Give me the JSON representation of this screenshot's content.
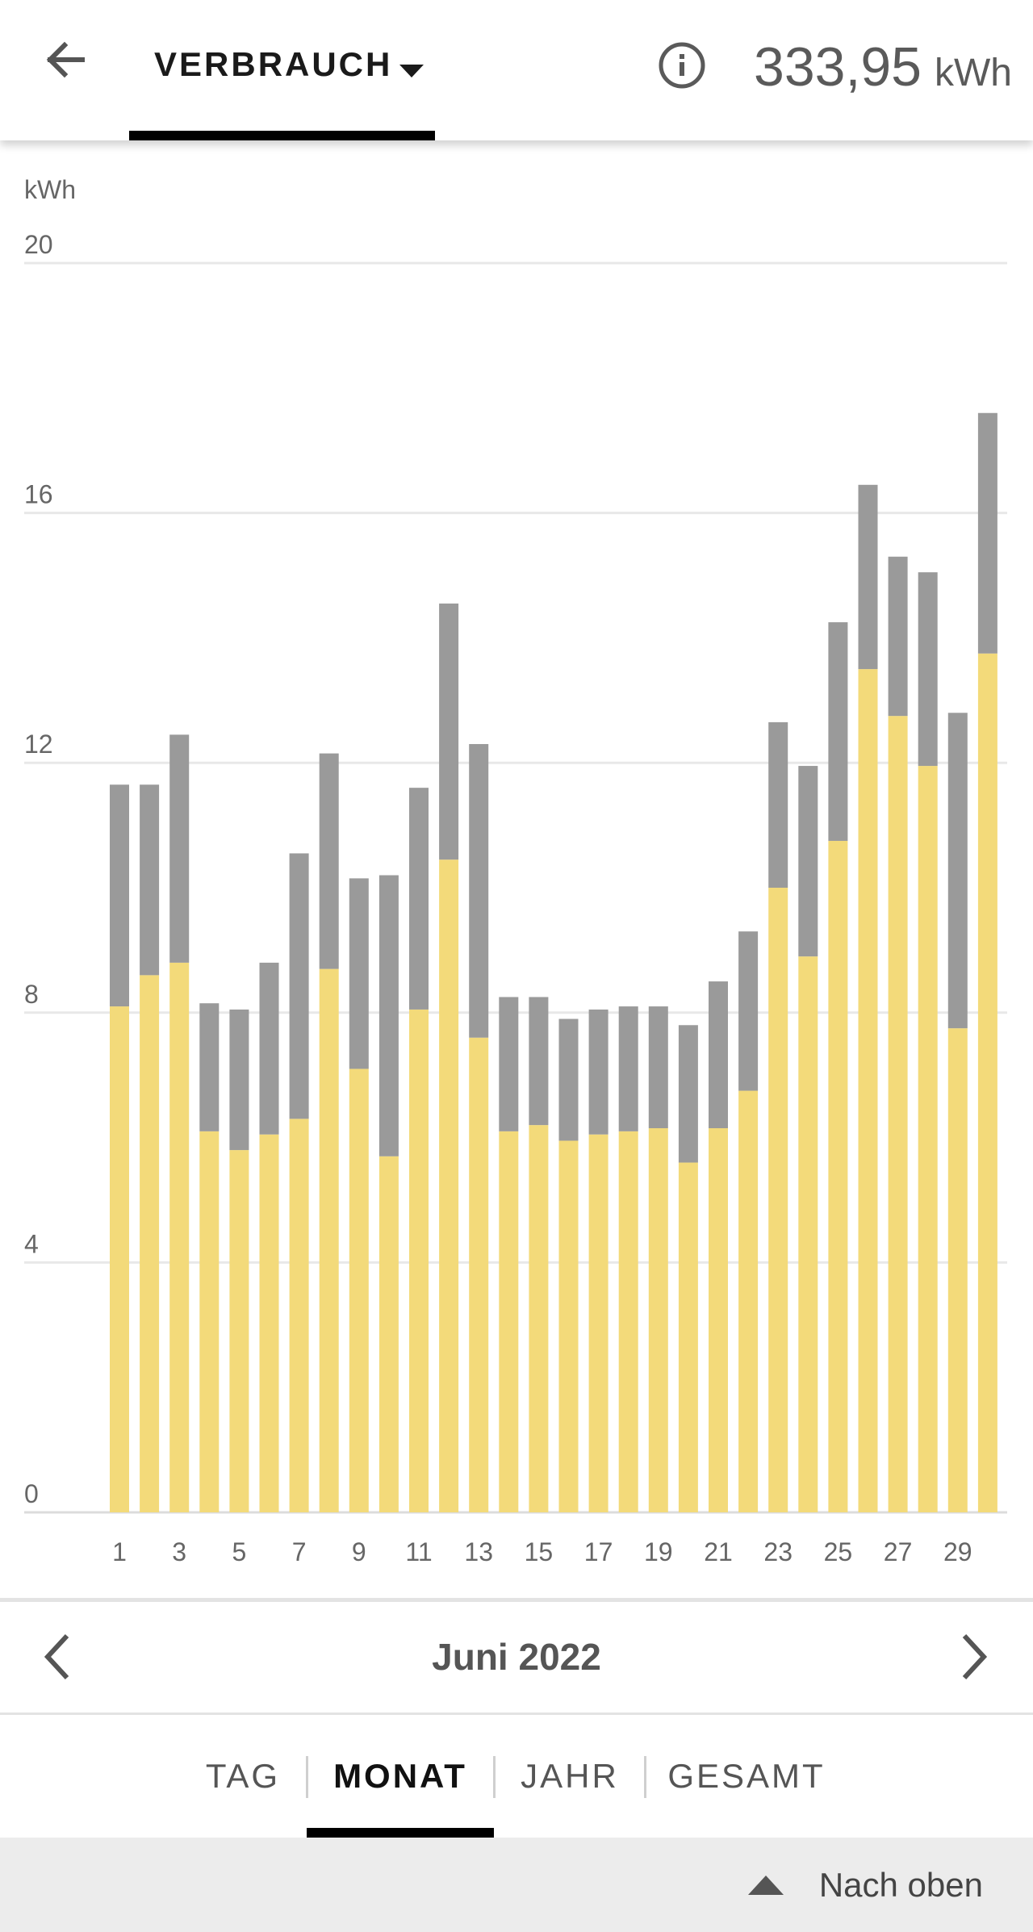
{
  "header": {
    "view_label": "VERBRAUCH",
    "total_value": "333,95",
    "total_unit": "kWh",
    "icons": [
      "arrow-left-icon",
      "caret-down-icon",
      "info-icon"
    ]
  },
  "chart_data": {
    "type": "bar",
    "stacked": true,
    "ylabel": "kWh",
    "ylim": [
      0,
      20
    ],
    "yticks": [
      0,
      4,
      8,
      12,
      16,
      20
    ],
    "xticks": [
      1,
      3,
      5,
      7,
      9,
      11,
      13,
      15,
      17,
      19,
      21,
      23,
      25,
      27,
      29
    ],
    "categories": [
      1,
      2,
      3,
      4,
      5,
      6,
      7,
      8,
      9,
      10,
      11,
      12,
      13,
      14,
      15,
      16,
      17,
      18,
      19,
      20,
      21,
      22,
      23,
      24,
      25,
      26,
      27,
      28,
      29,
      30
    ],
    "series": [
      {
        "color": "#f3da7a",
        "values": [
          8.1,
          8.6,
          8.8,
          6.1,
          5.8,
          6.05,
          6.3,
          8.7,
          7.1,
          5.7,
          8.05,
          10.45,
          7.6,
          6.1,
          6.2,
          5.95,
          6.05,
          6.1,
          6.15,
          5.6,
          6.15,
          6.75,
          10.0,
          8.9,
          10.75,
          13.5,
          12.75,
          11.95,
          7.75,
          13.75
        ]
      },
      {
        "color": "#9a9a9a",
        "values": [
          3.55,
          3.05,
          3.65,
          2.05,
          2.25,
          2.75,
          4.25,
          3.45,
          3.05,
          4.5,
          3.55,
          4.1,
          4.7,
          2.15,
          2.05,
          1.95,
          2.0,
          2.0,
          1.95,
          2.2,
          2.35,
          2.55,
          2.65,
          3.05,
          3.5,
          2.95,
          2.55,
          3.1,
          5.05,
          3.85
        ]
      }
    ],
    "grid": true
  },
  "period": {
    "label": "Juni 2022",
    "icons": [
      "chevron-left-icon",
      "chevron-right-icon"
    ]
  },
  "tabs": [
    {
      "label": "TAG",
      "active": false
    },
    {
      "label": "MONAT",
      "active": true
    },
    {
      "label": "JAHR",
      "active": false
    },
    {
      "label": "GESAMT",
      "active": false
    }
  ],
  "footer": {
    "scroll_top_label": "Nach oben",
    "icon": "triangle-up-icon"
  },
  "colors": {
    "accent_bar": "#f3da7a",
    "secondary_bar": "#9a9a9a",
    "text_muted": "#555555",
    "footer_bg": "#ececec"
  }
}
